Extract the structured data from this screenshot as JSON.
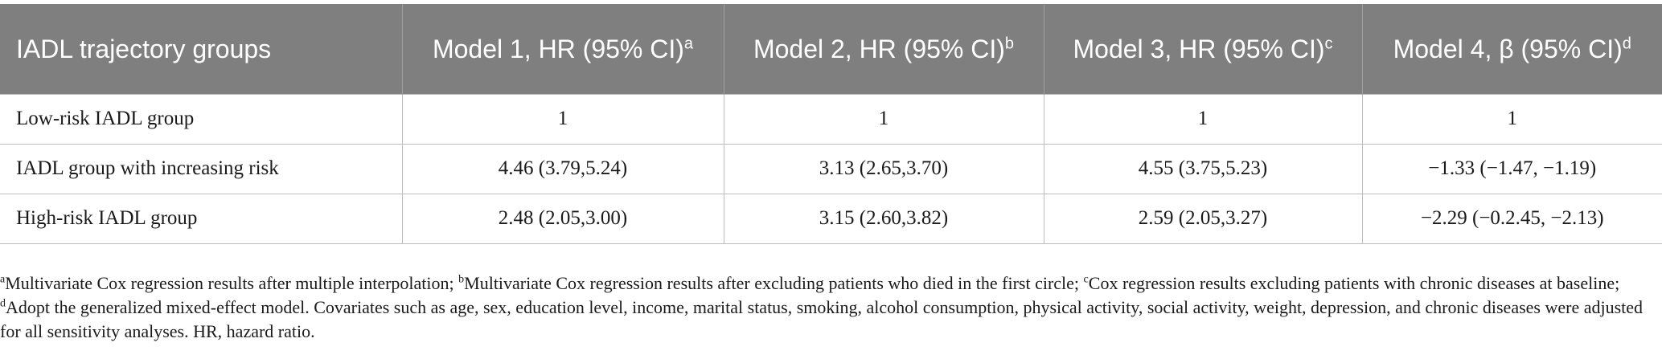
{
  "table": {
    "headers": [
      {
        "text": "IADL trajectory groups",
        "sup": ""
      },
      {
        "text": "Model 1, HR (95% CI)",
        "sup": "a"
      },
      {
        "text": "Model 2, HR (95% CI)",
        "sup": "b"
      },
      {
        "text": "Model 3, HR (95% CI)",
        "sup": "c"
      },
      {
        "text": "Model 4, β (95% CI)",
        "sup": "d"
      }
    ],
    "rows": [
      {
        "group": "Low-risk IADL group",
        "m1": "1",
        "m2": "1",
        "m3": "1",
        "m4": "1"
      },
      {
        "group": "IADL group with increasing risk",
        "m1": "4.46 (3.79,5.24)",
        "m2": "3.13 (2.65,3.70)",
        "m3": "4.55 (3.75,5.23)",
        "m4": "−1.33 (−1.47, −1.19)"
      },
      {
        "group": "High-risk IADL group",
        "m1": "2.48 (2.05,3.00)",
        "m2": "3.15 (2.60,3.82)",
        "m3": "2.59 (2.05,3.27)",
        "m4": "−2.29 (−0.2.45, −2.13)"
      }
    ]
  },
  "footnotes": [
    {
      "sup": "a",
      "text": "Multivariate Cox regression results after multiple interpolation; "
    },
    {
      "sup": "b",
      "text": "Multivariate Cox regression results after excluding patients who died in the first circle; "
    },
    {
      "sup": "c",
      "text": "Cox regression results excluding patients with chronic diseases at baseline; "
    },
    {
      "sup": "d",
      "text": "Adopt the generalized mixed-effect model. Covariates such as age, sex, education level, income, marital status, smoking, alcohol consumption, physical activity, social activity, weight, depression, and chronic diseases were adjusted for all sensitivity analyses. HR, hazard ratio."
    }
  ]
}
